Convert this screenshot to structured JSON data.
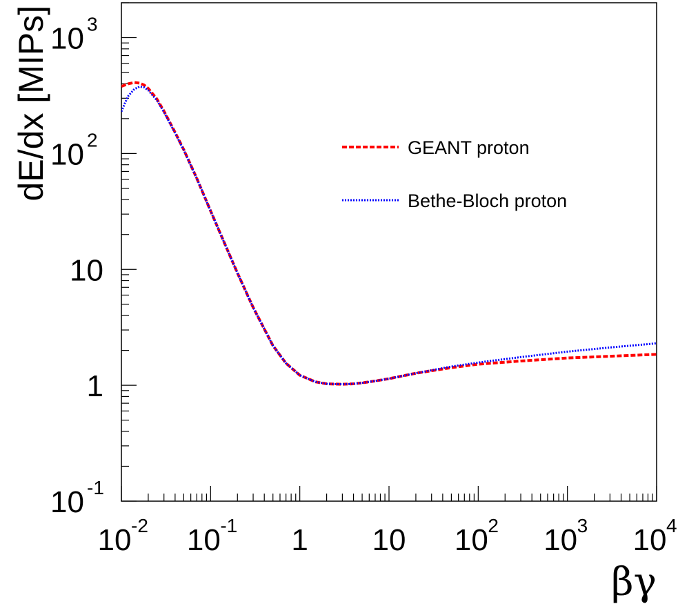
{
  "chart_data": {
    "type": "line",
    "title": "",
    "xlabel": "βγ",
    "ylabel": "dE/dx [MIPs]",
    "xscale": "log",
    "yscale": "log",
    "xlim": [
      0.01,
      10000
    ],
    "ylim": [
      0.1,
      2000
    ],
    "grid": false,
    "legend_position": "top-right",
    "x_ticks": [
      {
        "value": 0.01,
        "base": "10",
        "exp": "-2"
      },
      {
        "value": 0.1,
        "base": "10",
        "exp": "-1"
      },
      {
        "value": 1,
        "base": "1",
        "exp": ""
      },
      {
        "value": 10,
        "base": "10",
        "exp": ""
      },
      {
        "value": 100,
        "base": "10",
        "exp": "2"
      },
      {
        "value": 1000,
        "base": "10",
        "exp": "3"
      },
      {
        "value": 10000,
        "base": "10",
        "exp": "4"
      }
    ],
    "y_ticks": [
      {
        "value": 0.1,
        "base": "10",
        "exp": "-1"
      },
      {
        "value": 1,
        "base": "1",
        "exp": ""
      },
      {
        "value": 10,
        "base": "10",
        "exp": ""
      },
      {
        "value": 100,
        "base": "10",
        "exp": "2"
      },
      {
        "value": 1000,
        "base": "10",
        "exp": "3"
      }
    ],
    "series": [
      {
        "name": "GEANT proton",
        "color": "#ff0000",
        "style": "dashed",
        "x": [
          0.01,
          0.012,
          0.014,
          0.016,
          0.018,
          0.02,
          0.025,
          0.03,
          0.04,
          0.05,
          0.07,
          0.1,
          0.15,
          0.2,
          0.3,
          0.5,
          0.7,
          1,
          1.5,
          2,
          3,
          4,
          5,
          7,
          10,
          20,
          50,
          100,
          300,
          1000,
          3000,
          10000
        ],
        "y": [
          380,
          400,
          410,
          405,
          390,
          365,
          295,
          232,
          152,
          108,
          61,
          32,
          15.5,
          9.3,
          4.7,
          2.2,
          1.55,
          1.22,
          1.07,
          1.03,
          1.02,
          1.03,
          1.05,
          1.09,
          1.14,
          1.27,
          1.42,
          1.52,
          1.62,
          1.72,
          1.78,
          1.85
        ]
      },
      {
        "name": "Bethe-Bloch proton",
        "color": "#0000ff",
        "style": "dotted",
        "x": [
          0.01,
          0.011,
          0.012,
          0.014,
          0.016,
          0.018,
          0.02,
          0.025,
          0.03,
          0.04,
          0.05,
          0.07,
          0.1,
          0.15,
          0.2,
          0.3,
          0.5,
          0.7,
          1,
          1.5,
          2,
          3,
          4,
          5,
          7,
          10,
          20,
          50,
          100,
          300,
          1000,
          3000,
          10000
        ],
        "y": [
          230,
          275,
          315,
          360,
          378,
          372,
          352,
          288,
          228,
          150,
          107,
          61,
          32,
          15.5,
          9.3,
          4.7,
          2.2,
          1.55,
          1.22,
          1.07,
          1.03,
          1.02,
          1.03,
          1.05,
          1.09,
          1.14,
          1.27,
          1.45,
          1.57,
          1.75,
          1.95,
          2.12,
          2.3
        ]
      }
    ]
  }
}
